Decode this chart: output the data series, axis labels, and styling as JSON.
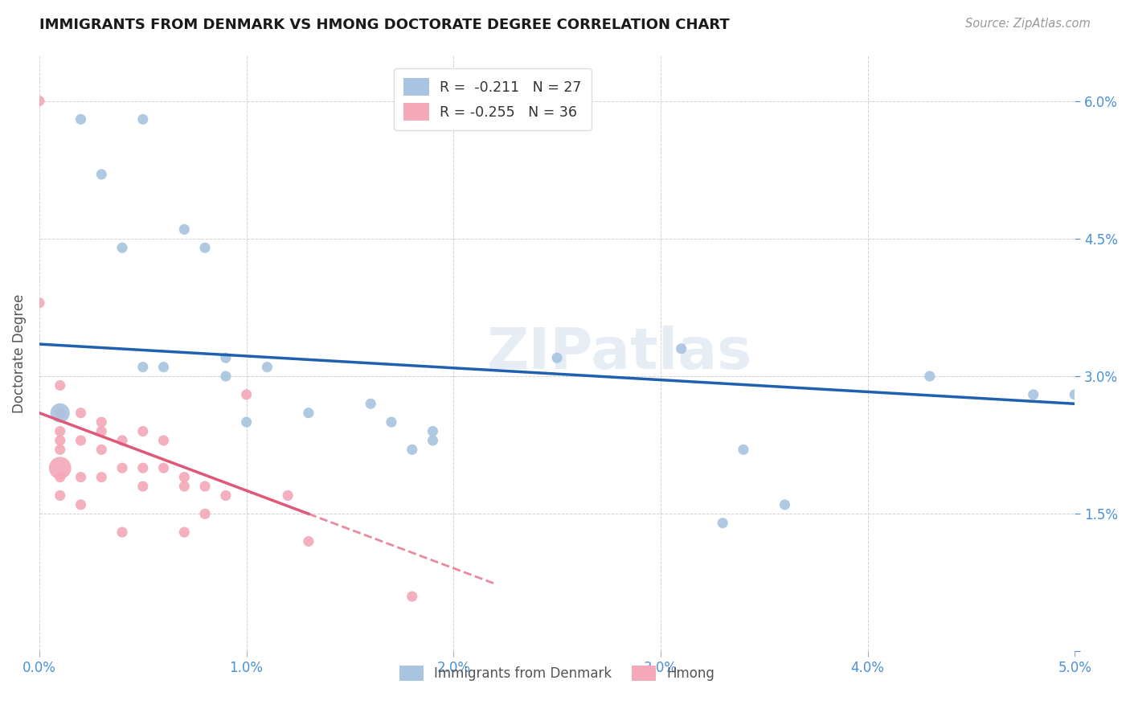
{
  "title": "IMMIGRANTS FROM DENMARK VS HMONG DOCTORATE DEGREE CORRELATION CHART",
  "source": "Source: ZipAtlas.com",
  "xlabel": "",
  "ylabel": "Doctorate Degree",
  "xlim": [
    0.0,
    0.05
  ],
  "ylim": [
    0.0,
    0.065
  ],
  "xticks": [
    0.0,
    0.01,
    0.02,
    0.03,
    0.04,
    0.05
  ],
  "yticks": [
    0.0,
    0.015,
    0.03,
    0.045,
    0.06
  ],
  "xticklabels": [
    "0.0%",
    "1.0%",
    "2.0%",
    "3.0%",
    "4.0%",
    "5.0%"
  ],
  "yticklabels": [
    "",
    "1.5%",
    "3.0%",
    "4.5%",
    "6.0%"
  ],
  "denmark_R": "-0.211",
  "denmark_N": "27",
  "hmong_R": "-0.255",
  "hmong_N": "36",
  "denmark_color": "#a8c4e0",
  "hmong_color": "#f4a8b8",
  "denmark_line_color": "#2060b0",
  "hmong_line_color": "#e05878",
  "background_color": "#ffffff",
  "grid_color": "#cccccc",
  "watermark": "ZIPatlas",
  "denmark_x": [
    0.001,
    0.002,
    0.003,
    0.004,
    0.005,
    0.005,
    0.006,
    0.007,
    0.008,
    0.009,
    0.009,
    0.01,
    0.011,
    0.013,
    0.016,
    0.017,
    0.018,
    0.019,
    0.019,
    0.025,
    0.031,
    0.033,
    0.034,
    0.036,
    0.043,
    0.048,
    0.05
  ],
  "denmark_y": [
    0.026,
    0.058,
    0.052,
    0.044,
    0.058,
    0.031,
    0.031,
    0.046,
    0.044,
    0.032,
    0.03,
    0.025,
    0.031,
    0.026,
    0.027,
    0.025,
    0.022,
    0.024,
    0.023,
    0.032,
    0.033,
    0.014,
    0.022,
    0.016,
    0.03,
    0.028,
    0.028
  ],
  "hmong_x": [
    0.0,
    0.0,
    0.001,
    0.001,
    0.001,
    0.001,
    0.001,
    0.001,
    0.001,
    0.001,
    0.002,
    0.002,
    0.002,
    0.002,
    0.003,
    0.003,
    0.003,
    0.003,
    0.004,
    0.004,
    0.004,
    0.005,
    0.005,
    0.005,
    0.006,
    0.006,
    0.007,
    0.007,
    0.007,
    0.008,
    0.008,
    0.009,
    0.01,
    0.012,
    0.013,
    0.018
  ],
  "hmong_y": [
    0.06,
    0.038,
    0.029,
    0.026,
    0.024,
    0.023,
    0.022,
    0.02,
    0.019,
    0.017,
    0.026,
    0.023,
    0.019,
    0.016,
    0.025,
    0.024,
    0.022,
    0.019,
    0.023,
    0.02,
    0.013,
    0.024,
    0.02,
    0.018,
    0.023,
    0.02,
    0.019,
    0.018,
    0.013,
    0.018,
    0.015,
    0.017,
    0.028,
    0.017,
    0.012,
    0.006
  ],
  "dk_big_marker_indices": [
    0
  ],
  "hm_big_marker_indices": [
    7
  ],
  "dk_line_x0": 0.0,
  "dk_line_x1": 0.05,
  "dk_line_y0": 0.0335,
  "dk_line_y1": 0.027,
  "hm_line_x0": 0.0,
  "hm_line_y0": 0.026,
  "hm_line_solid_x1": 0.013,
  "hm_line_dashed_x1": 0.022,
  "hm_line_slope": -0.85
}
